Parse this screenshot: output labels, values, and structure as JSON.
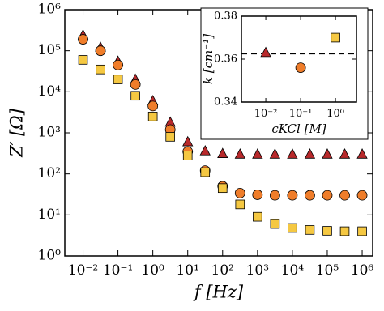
{
  "chart_data": [
    {
      "type": "scatter",
      "xlabel": "f [Hz]",
      "ylabel": "Z′ [Ω]",
      "xlog": true,
      "ylog": true,
      "xlim": [
        0.003,
        2000000
      ],
      "ylim": [
        1,
        1000000
      ],
      "xticks": [
        {
          "value": 0.01,
          "label": "10⁻²"
        },
        {
          "value": 0.1,
          "label": "10⁻¹"
        },
        {
          "value": 1,
          "label": "10⁰"
        },
        {
          "value": 10,
          "label": "10¹"
        },
        {
          "value": 100,
          "label": "10²"
        },
        {
          "value": 1000,
          "label": "10³"
        },
        {
          "value": 10000,
          "label": "10⁴"
        },
        {
          "value": 100000,
          "label": "10⁵"
        },
        {
          "value": 1000000,
          "label": "10⁶"
        }
      ],
      "yticks": [
        {
          "value": 1,
          "label": "10⁰"
        },
        {
          "value": 10,
          "label": "10¹"
        },
        {
          "value": 100,
          "label": "10²"
        },
        {
          "value": 1000,
          "label": "10³"
        },
        {
          "value": 10000,
          "label": "10⁴"
        },
        {
          "value": 100000,
          "label": "10⁵"
        },
        {
          "value": 1000000,
          "label": "10⁶"
        }
      ],
      "x": [
        0.01,
        0.0316,
        0.1,
        0.316,
        1,
        3.16,
        10,
        31.6,
        100,
        316,
        1000,
        3162,
        10000,
        31623,
        100000,
        316228,
        1000000
      ],
      "series": [
        {
          "color": "#b8292b",
          "marker": "triangle",
          "values": [
            240000,
            120000,
            55000,
            20000,
            6000,
            1800,
            600,
            360,
            310,
            300,
            300,
            300,
            300,
            300,
            300,
            300,
            300
          ]
        },
        {
          "color": "#ef7d2a",
          "marker": "circle",
          "values": [
            190000,
            100000,
            45000,
            15000,
            4500,
            1200,
            350,
            120,
            50,
            34,
            31,
            30,
            30,
            30,
            30,
            30,
            30
          ]
        },
        {
          "color": "#f5c842",
          "marker": "square",
          "values": [
            60000,
            35000,
            20000,
            8000,
            2500,
            800,
            280,
            110,
            45,
            18,
            9,
            6,
            4.8,
            4.3,
            4.1,
            4,
            4
          ]
        }
      ]
    },
    {
      "type": "scatter",
      "xlabel": "cKCl [M]",
      "ylabel": "k [cm⁻¹]",
      "xlog": true,
      "ylog": false,
      "xlim": [
        0.002,
        4
      ],
      "ylim": [
        0.34,
        0.38
      ],
      "xticks": [
        {
          "value": 0.01,
          "label": "10⁻²"
        },
        {
          "value": 0.1,
          "label": "10⁻¹"
        },
        {
          "value": 1,
          "label": "10⁰"
        }
      ],
      "yticks": [
        0.34,
        0.36,
        0.38
      ],
      "hline": 0.3625,
      "series": [
        {
          "color": "#b8292b",
          "marker": "triangle",
          "x": [
            0.01
          ],
          "values": [
            0.363
          ]
        },
        {
          "color": "#ef7d2a",
          "marker": "circle",
          "x": [
            0.1
          ],
          "values": [
            0.356
          ]
        },
        {
          "color": "#f5c842",
          "marker": "square",
          "x": [
            1
          ],
          "values": [
            0.37
          ]
        }
      ]
    }
  ]
}
